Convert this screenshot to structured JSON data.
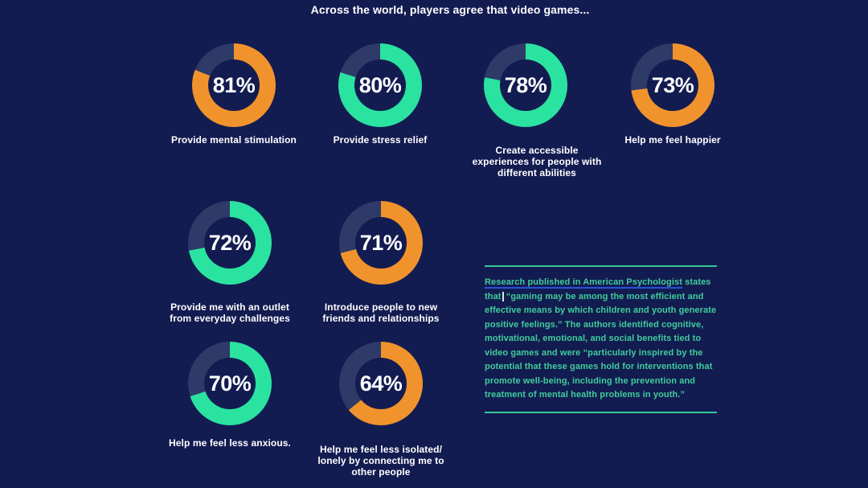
{
  "title": "Across the world, players agree that video games...",
  "colors": {
    "background": "#131C51",
    "orange": "#F1932C",
    "green": "#2BE3A1",
    "track": "#2E3A68",
    "label_text": "#FFFFFF",
    "note_text": "#3FCD9B",
    "link_underline": "#2B50D8",
    "rule": "#35C997"
  },
  "chart_data": {
    "type": "pie",
    "subtype": "donut-grid",
    "unit": "%",
    "title": "Across the world, players agree that video games...",
    "legend": "none",
    "items": [
      {
        "value": 81,
        "label": "Provide mental stimulation",
        "color": "orange"
      },
      {
        "value": 80,
        "label": "Provide stress relief",
        "color": "green"
      },
      {
        "value": 78,
        "label": "Create accessible\nexperiences for people with\ndifferent abilities",
        "color": "green"
      },
      {
        "value": 73,
        "label": "Help me feel happier",
        "color": "orange"
      },
      {
        "value": 72,
        "label": "Provide me with an outlet\nfrom everyday challenges",
        "color": "green"
      },
      {
        "value": 71,
        "label": "Introduce people to new\nfriends and relationships",
        "color": "orange"
      },
      {
        "value": 70,
        "label": "Help me feel less anxious.",
        "color": "green"
      },
      {
        "value": 64,
        "label": "Help me feel less isolated/\nlonely by connecting me to\nother people",
        "color": "orange"
      }
    ]
  },
  "note": {
    "link_text": "Research published in American Psychologist",
    "after_link": " states that",
    "rest": " “gaming may be among the most efficient and effective means by which children and youth generate positive feelings.” The authors identified cognitive, motivational, emotional, and social benefits tied to video games and were “particularly inspired by the potential that these games hold for interventions that promote well-being, including the prevention and treatment of mental health problems in youth.”"
  }
}
